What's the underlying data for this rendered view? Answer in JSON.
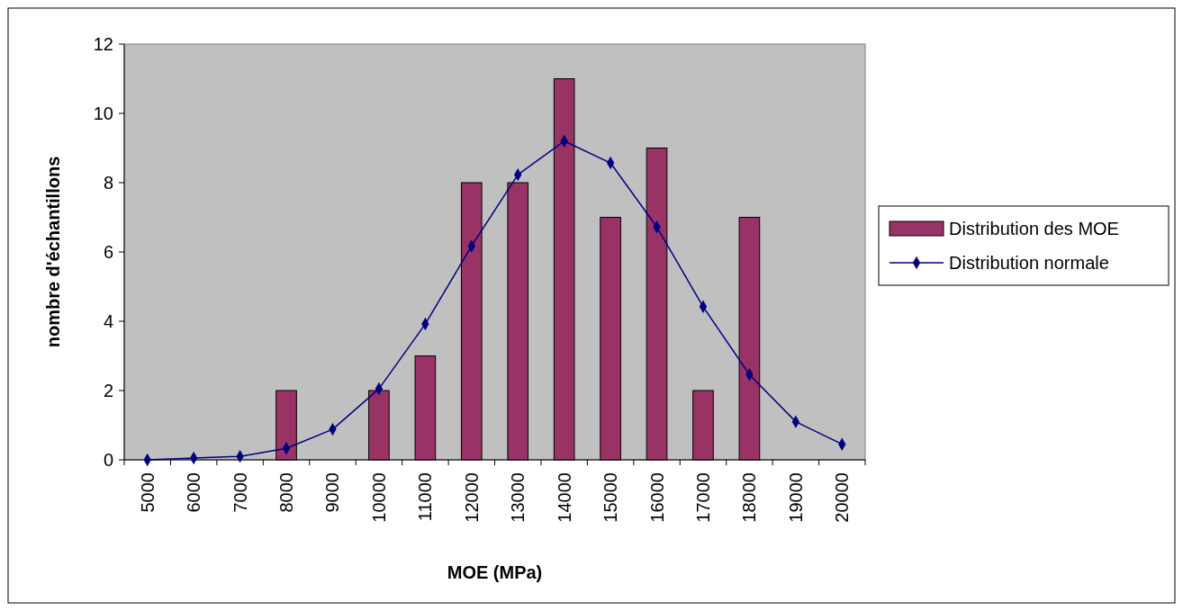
{
  "chart_data": {
    "type": "bar",
    "xlabel": "MOE (MPa)",
    "ylabel": "nombre d'échantillons",
    "categories": [
      "5000",
      "6000",
      "7000",
      "8000",
      "9000",
      "10000",
      "11000",
      "12000",
      "13000",
      "14000",
      "15000",
      "16000",
      "17000",
      "18000",
      "19000",
      "20000"
    ],
    "series": [
      {
        "name": "Distribution des MOE",
        "color": "#993366",
        "values": [
          0,
          0,
          0,
          2,
          0,
          2,
          3,
          8,
          8,
          11,
          7,
          9,
          2,
          7,
          0,
          0
        ]
      },
      {
        "name": "Distribution normale",
        "type": "line",
        "color": "#000080",
        "marker": "diamond",
        "values": [
          0,
          0.05,
          0.1,
          0.33,
          0.88,
          2.05,
          3.92,
          6.17,
          8.23,
          9.2,
          8.57,
          6.72,
          4.42,
          2.46,
          1.1,
          0.45
        ]
      }
    ],
    "ylim": [
      0,
      12
    ],
    "yticks": [
      0,
      2,
      4,
      6,
      8,
      10,
      12
    ],
    "grid": false,
    "legend": "right"
  }
}
